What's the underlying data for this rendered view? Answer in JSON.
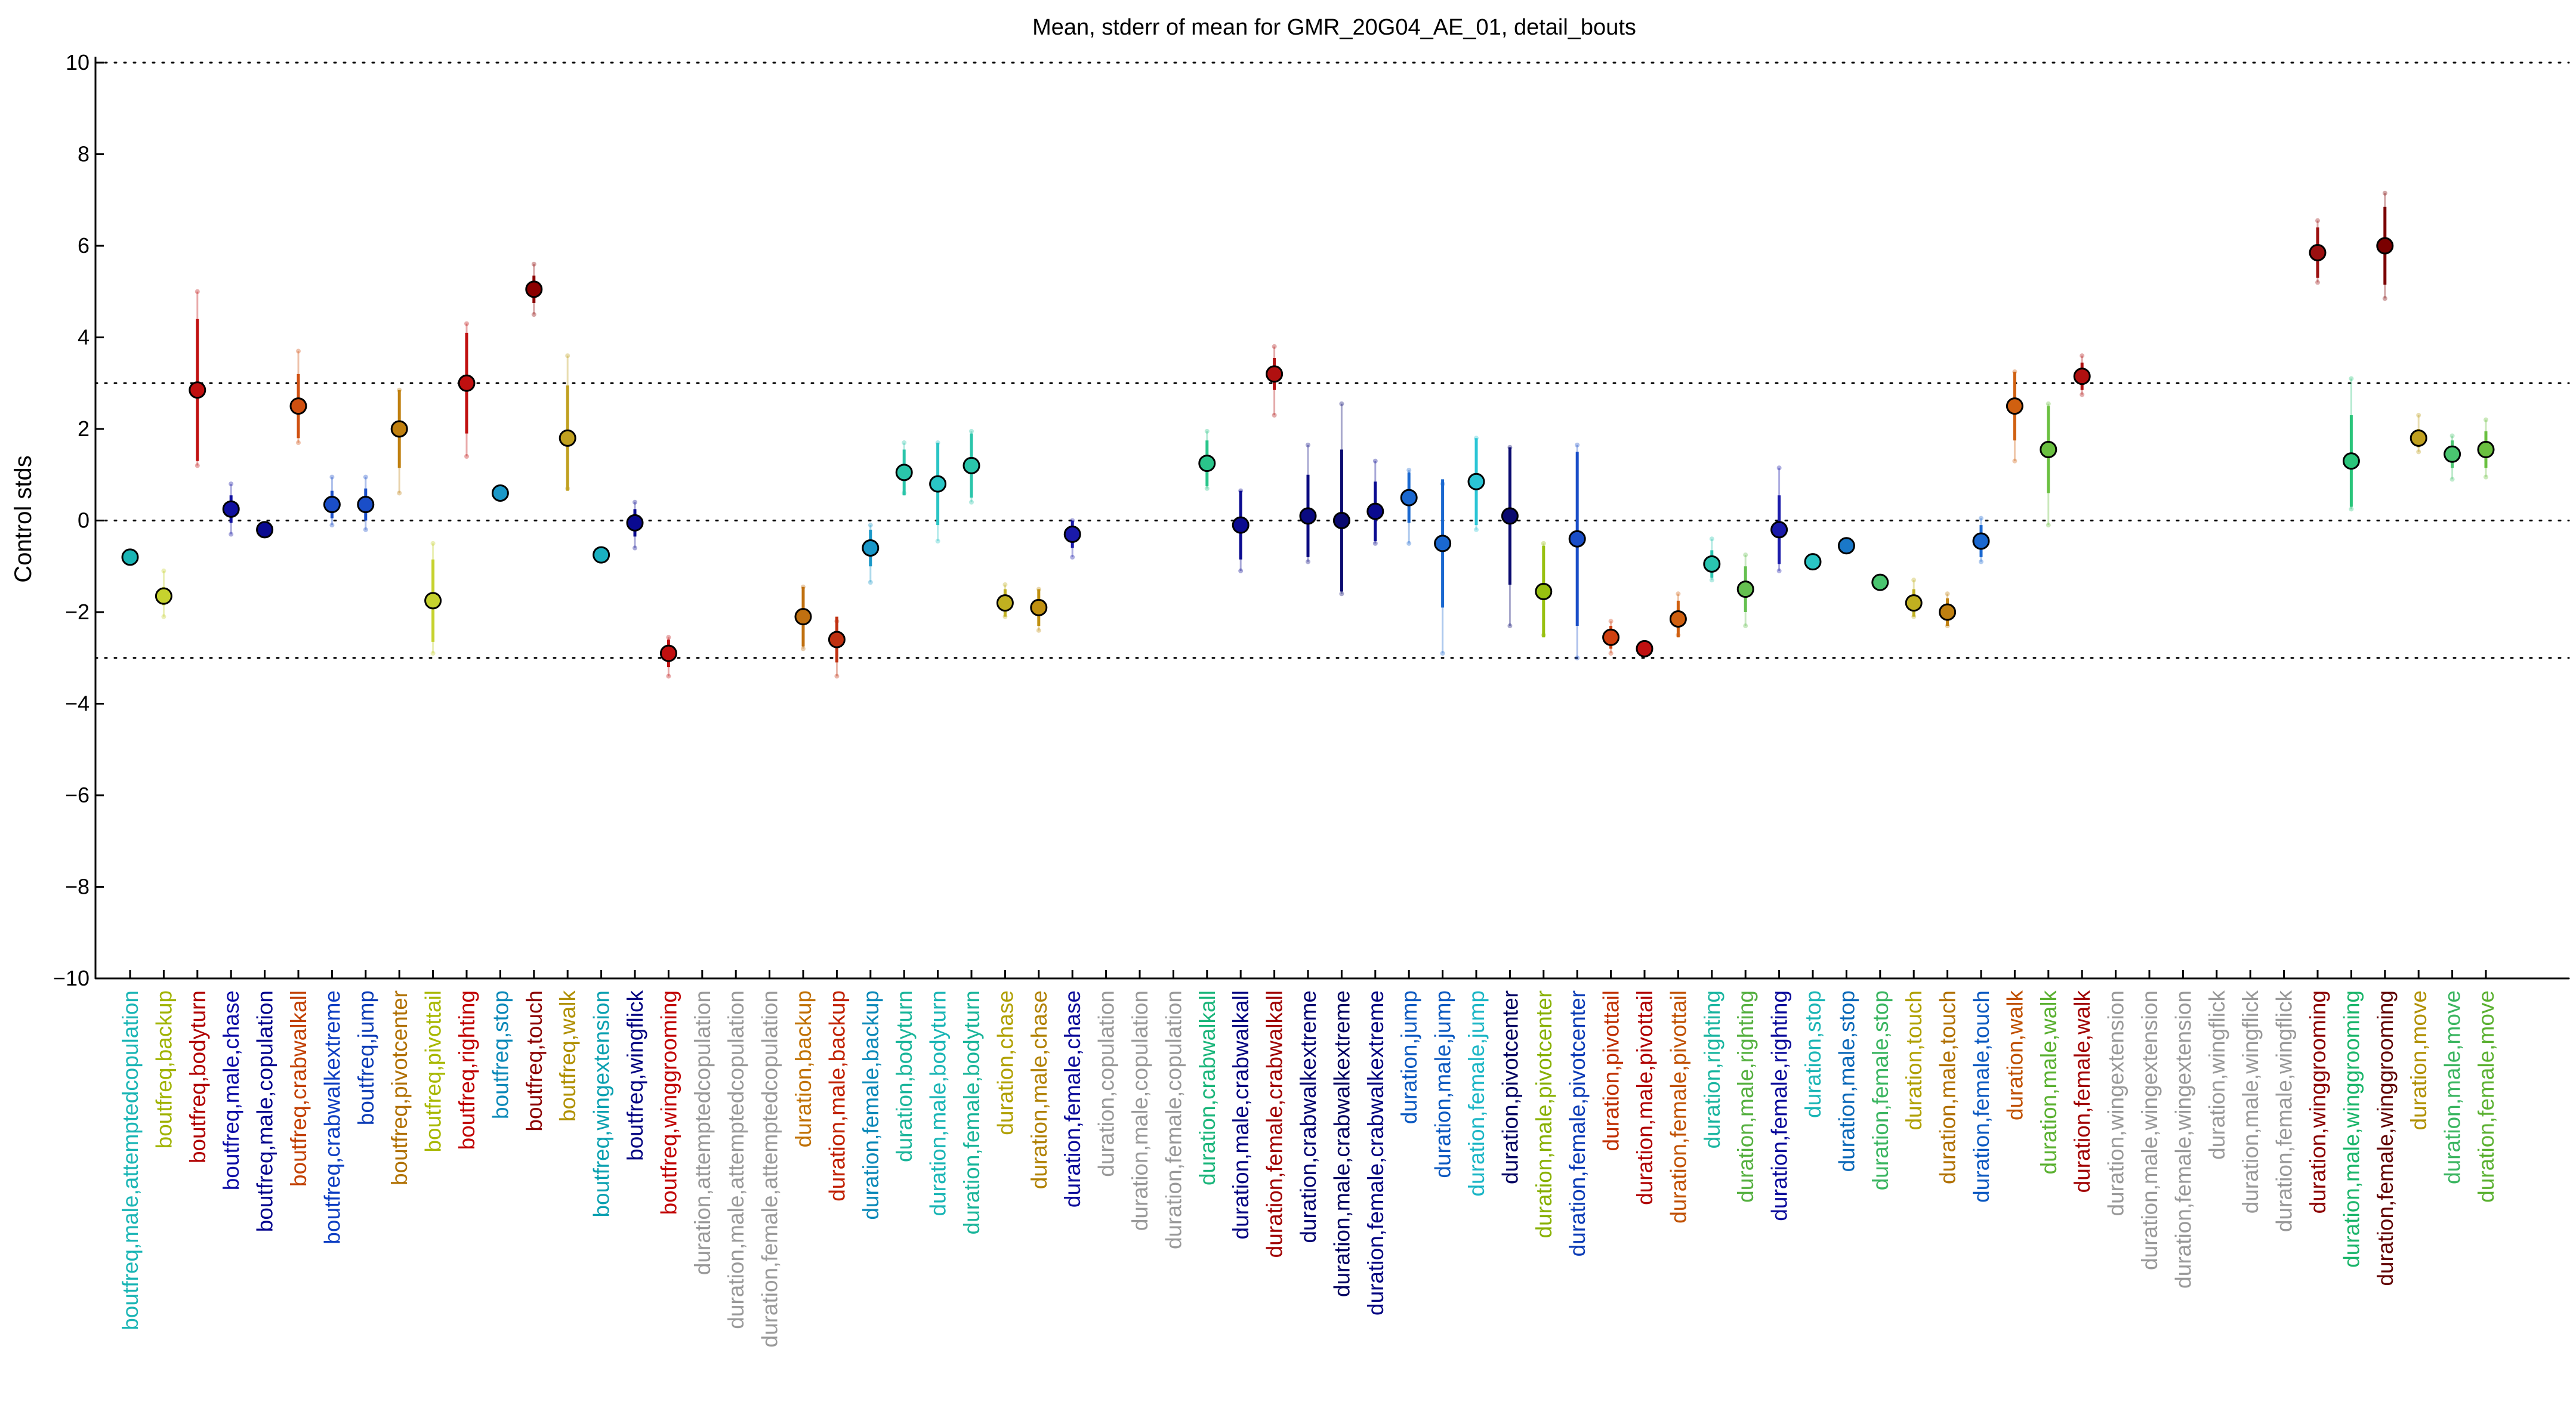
{
  "chart_data": {
    "type": "scatter",
    "title": "Mean, stderr of mean for GMR_20G04_AE_01, detail_bouts",
    "ylabel": "Control stds",
    "xlabel": "",
    "ylim": [
      -10,
      10
    ],
    "yticks": [
      -10,
      -8,
      -6,
      -4,
      -2,
      0,
      2,
      4,
      6,
      8,
      10
    ],
    "reference_lines": [
      -10,
      -3,
      0,
      3,
      10
    ],
    "grid": false,
    "categories": [
      "boutfreq,male,attemptedcopulation",
      "boutfreq,backup",
      "boutfreq,bodyturn",
      "boutfreq,male,chase",
      "boutfreq,male,copulation",
      "boutfreq,crabwalkall",
      "boutfreq,crabwalkextreme",
      "boutfreq,jump",
      "boutfreq,pivotcenter",
      "boutfreq,pivottail",
      "boutfreq,righting",
      "boutfreq,stop",
      "boutfreq,touch",
      "boutfreq,walk",
      "boutfreq,wingextension",
      "boutfreq,wingflick",
      "boutfreq,winggrooming",
      "duration,attemptedcopulation",
      "duration,male,attemptedcopulation",
      "duration,female,attemptedcopulation",
      "duration,backup",
      "duration,male,backup",
      "duration,female,backup",
      "duration,bodyturn",
      "duration,male,bodyturn",
      "duration,female,bodyturn",
      "duration,chase",
      "duration,male,chase",
      "duration,female,chase",
      "duration,copulation",
      "duration,male,copulation",
      "duration,female,copulation",
      "duration,crabwalkall",
      "duration,male,crabwalkall",
      "duration,female,crabwalkall",
      "duration,crabwalkextreme",
      "duration,male,crabwalkextreme",
      "duration,female,crabwalkextreme",
      "duration,jump",
      "duration,male,jump",
      "duration,female,jump",
      "duration,pivotcenter",
      "duration,male,pivotcenter",
      "duration,female,pivotcenter",
      "duration,pivottail",
      "duration,male,pivottail",
      "duration,female,pivottail",
      "duration,righting",
      "duration,male,righting",
      "duration,female,righting",
      "duration,stop",
      "duration,male,stop",
      "duration,female,stop",
      "duration,touch",
      "duration,male,touch",
      "duration,female,touch",
      "duration,walk",
      "duration,male,walk",
      "duration,female,walk",
      "duration,wingextension",
      "duration,male,wingextension",
      "duration,female,wingextension",
      "duration,wingflick",
      "duration,male,wingflick",
      "duration,female,wingflick",
      "duration,winggrooming",
      "duration,male,winggrooming",
      "duration,female,winggrooming",
      "duration,move",
      "duration,male,move",
      "duration,female,move"
    ],
    "label_colors": [
      "#1ab5b5",
      "#a0b300",
      "#b00000",
      "#0a0aa5",
      "#00008c",
      "#c24000",
      "#0d3ec2",
      "#0a3ab5",
      "#b07000",
      "#a8b800",
      "#c00000",
      "#0a88b8",
      "#8b0000",
      "#b09000",
      "#0aa0b0",
      "#000080",
      "#c00000",
      "#999999",
      "#999999",
      "#999999",
      "#c07000",
      "#c02000",
      "#0a88b8",
      "#1ab59a",
      "#1ab5b5",
      "#1ab59a",
      "#b0a000",
      "#b08000",
      "#0a0a9a",
      "#999999",
      "#999999",
      "#999999",
      "#1ab57a",
      "#000080",
      "#a00000",
      "#000070",
      "#000060",
      "#000080",
      "#0a58c0",
      "#0a58c0",
      "#1ab5c5",
      "#000060",
      "#88b000",
      "#0a3ab5",
      "#c03000",
      "#b00000",
      "#c05000",
      "#1ab5a0",
      "#55b040",
      "#0a0a9a",
      "#1ab5b5",
      "#0a68b8",
      "#3ab560",
      "#b0a000",
      "#b07000",
      "#0a58c0",
      "#c05000",
      "#5ab030",
      "#a00000",
      "#999999",
      "#999999",
      "#999999",
      "#999999",
      "#999999",
      "#999999",
      "#8b0000",
      "#1ab56a",
      "#600000",
      "#b09000",
      "#3ab560",
      "#5ab030"
    ],
    "series": [
      {
        "name": "",
        "points": [
          {
            "x": 0,
            "mean": -0.8,
            "sem": 0.05,
            "lo": -0.8,
            "hi": -0.8,
            "fill": "#1ab5b5"
          },
          {
            "x": 1,
            "mean": -1.65,
            "sem": 0.2,
            "lo": -2.1,
            "hi": -1.1,
            "fill": "#c6d22e"
          },
          {
            "x": 2,
            "mean": 2.85,
            "sem": 1.55,
            "lo": 1.2,
            "hi": 5.0,
            "fill": "#c01010"
          },
          {
            "x": 3,
            "mean": 0.25,
            "sem": 0.3,
            "lo": -0.3,
            "hi": 0.8,
            "fill": "#1010a0"
          },
          {
            "x": 4,
            "mean": -0.2,
            "sem": 0.05,
            "lo": -0.2,
            "hi": -0.2,
            "fill": "#0a0a90"
          },
          {
            "x": 5,
            "mean": 2.5,
            "sem": 0.7,
            "lo": 1.7,
            "hi": 3.7,
            "fill": "#d05010"
          },
          {
            "x": 6,
            "mean": 0.35,
            "sem": 0.3,
            "lo": -0.1,
            "hi": 0.95,
            "fill": "#1a4ec8"
          },
          {
            "x": 7,
            "mean": 0.35,
            "sem": 0.35,
            "lo": -0.2,
            "hi": 0.95,
            "fill": "#1a4ec8"
          },
          {
            "x": 8,
            "mean": 2.0,
            "sem": 0.85,
            "lo": 0.6,
            "hi": 2.85,
            "fill": "#c08010"
          },
          {
            "x": 9,
            "mean": -1.75,
            "sem": 0.9,
            "lo": -2.9,
            "hi": -0.5,
            "fill": "#c6d22e"
          },
          {
            "x": 10,
            "mean": 3.0,
            "sem": 1.1,
            "lo": 1.4,
            "hi": 4.3,
            "fill": "#c01010"
          },
          {
            "x": 11,
            "mean": 0.6,
            "sem": 0.05,
            "lo": 0.6,
            "hi": 0.6,
            "fill": "#1a98c8"
          },
          {
            "x": 12,
            "mean": 5.05,
            "sem": 0.3,
            "lo": 4.5,
            "hi": 5.6,
            "fill": "#8b0000"
          },
          {
            "x": 13,
            "mean": 1.8,
            "sem": 1.15,
            "lo": 0.7,
            "hi": 3.6,
            "fill": "#c0a020"
          },
          {
            "x": 14,
            "mean": -0.75,
            "sem": 0.05,
            "lo": -0.75,
            "hi": -0.75,
            "fill": "#1ab0c0"
          },
          {
            "x": 15,
            "mean": -0.05,
            "sem": 0.3,
            "lo": -0.6,
            "hi": 0.4,
            "fill": "#0a0a90"
          },
          {
            "x": 16,
            "mean": -2.9,
            "sem": 0.3,
            "lo": -3.4,
            "hi": -2.55,
            "fill": "#c01010"
          },
          {
            "x": 20,
            "mean": -2.1,
            "sem": 0.65,
            "lo": -2.8,
            "hi": -1.45,
            "fill": "#c07010"
          },
          {
            "x": 21,
            "mean": -2.6,
            "sem": 0.5,
            "lo": -3.4,
            "hi": -2.2,
            "fill": "#c03010"
          },
          {
            "x": 22,
            "mean": -0.6,
            "sem": 0.4,
            "lo": -1.35,
            "hi": -0.1,
            "fill": "#1a98c8"
          },
          {
            "x": 23,
            "mean": 1.05,
            "sem": 0.5,
            "lo": 0.6,
            "hi": 1.7,
            "fill": "#2ac5aa"
          },
          {
            "x": 24,
            "mean": 0.8,
            "sem": 0.9,
            "lo": -0.45,
            "hi": 1.7,
            "fill": "#2ac5c5"
          },
          {
            "x": 25,
            "mean": 1.2,
            "sem": 0.7,
            "lo": 0.4,
            "hi": 1.95,
            "fill": "#2ac5aa"
          },
          {
            "x": 26,
            "mean": -1.8,
            "sem": 0.3,
            "lo": -2.1,
            "hi": -1.4,
            "fill": "#c0b020"
          },
          {
            "x": 27,
            "mean": -1.9,
            "sem": 0.4,
            "lo": -2.4,
            "hi": -1.5,
            "fill": "#c09010"
          },
          {
            "x": 28,
            "mean": -0.3,
            "sem": 0.3,
            "lo": -0.8,
            "hi": 0.0,
            "fill": "#1a1aaa"
          },
          {
            "x": 32,
            "mean": 1.25,
            "sem": 0.5,
            "lo": 0.7,
            "hi": 1.95,
            "fill": "#2ac58a"
          },
          {
            "x": 33,
            "mean": -0.1,
            "sem": 0.75,
            "lo": -1.1,
            "hi": 0.65,
            "fill": "#0a0a90"
          },
          {
            "x": 34,
            "mean": 3.2,
            "sem": 0.35,
            "lo": 2.3,
            "hi": 3.8,
            "fill": "#b01010"
          },
          {
            "x": 35,
            "mean": 0.1,
            "sem": 0.9,
            "lo": -0.9,
            "hi": 1.65,
            "fill": "#0a0a80"
          },
          {
            "x": 36,
            "mean": 0.0,
            "sem": 1.55,
            "lo": -1.6,
            "hi": 2.55,
            "fill": "#0a0a70"
          },
          {
            "x": 37,
            "mean": 0.2,
            "sem": 0.65,
            "lo": -0.5,
            "hi": 1.3,
            "fill": "#0a0a90"
          },
          {
            "x": 38,
            "mean": 0.5,
            "sem": 0.55,
            "lo": -0.5,
            "hi": 1.1,
            "fill": "#1a68d0"
          },
          {
            "x": 39,
            "mean": -0.5,
            "sem": 1.4,
            "lo": -2.9,
            "hi": 0.8,
            "fill": "#1a68d0"
          },
          {
            "x": 40,
            "mean": 0.85,
            "sem": 0.95,
            "lo": -0.2,
            "hi": 1.8,
            "fill": "#2ac5d5"
          },
          {
            "x": 41,
            "mean": 0.1,
            "sem": 1.5,
            "lo": -2.3,
            "hi": 1.6,
            "fill": "#0a0a70"
          },
          {
            "x": 42,
            "mean": -1.55,
            "sem": 1.0,
            "lo": -2.5,
            "hi": -0.5,
            "fill": "#98c010"
          },
          {
            "x": 43,
            "mean": -0.4,
            "sem": 1.9,
            "lo": -3.0,
            "hi": 1.65,
            "fill": "#1a4ec8"
          },
          {
            "x": 44,
            "mean": -2.55,
            "sem": 0.25,
            "lo": -2.9,
            "hi": -2.2,
            "fill": "#d04010"
          },
          {
            "x": 45,
            "mean": -2.8,
            "sem": 0.05,
            "lo": -2.8,
            "hi": -2.8,
            "fill": "#c01010"
          },
          {
            "x": 46,
            "mean": -2.15,
            "sem": 0.4,
            "lo": -2.5,
            "hi": -1.6,
            "fill": "#d06010"
          },
          {
            "x": 47,
            "mean": -0.95,
            "sem": 0.3,
            "lo": -1.3,
            "hi": -0.4,
            "fill": "#2ac5b0"
          },
          {
            "x": 48,
            "mean": -1.5,
            "sem": 0.5,
            "lo": -2.3,
            "hi": -0.75,
            "fill": "#65c050"
          },
          {
            "x": 49,
            "mean": -0.2,
            "sem": 0.75,
            "lo": -1.1,
            "hi": 1.15,
            "fill": "#1a1aaa"
          },
          {
            "x": 50,
            "mean": -0.9,
            "sem": 0.05,
            "lo": -0.9,
            "hi": -0.9,
            "fill": "#2ac5c5"
          },
          {
            "x": 51,
            "mean": -0.55,
            "sem": 0.05,
            "lo": -0.55,
            "hi": -0.55,
            "fill": "#1a78c8"
          },
          {
            "x": 52,
            "mean": -1.35,
            "sem": 0.05,
            "lo": -1.35,
            "hi": -1.35,
            "fill": "#4ac570"
          },
          {
            "x": 53,
            "mean": -1.8,
            "sem": 0.3,
            "lo": -2.1,
            "hi": -1.3,
            "fill": "#c0b020"
          },
          {
            "x": 54,
            "mean": -2.0,
            "sem": 0.3,
            "lo": -2.3,
            "hi": -1.6,
            "fill": "#c08010"
          },
          {
            "x": 55,
            "mean": -0.45,
            "sem": 0.35,
            "lo": -0.9,
            "hi": 0.05,
            "fill": "#1a68d0"
          },
          {
            "x": 56,
            "mean": 2.5,
            "sem": 0.75,
            "lo": 1.3,
            "hi": 3.25,
            "fill": "#d06010"
          },
          {
            "x": 57,
            "mean": 1.55,
            "sem": 0.95,
            "lo": -0.1,
            "hi": 2.55,
            "fill": "#6ac040"
          },
          {
            "x": 58,
            "mean": 3.15,
            "sem": 0.3,
            "lo": 2.75,
            "hi": 3.6,
            "fill": "#b01010"
          },
          {
            "x": 65,
            "mean": 5.85,
            "sem": 0.55,
            "lo": 5.2,
            "hi": 6.55,
            "fill": "#9b1010"
          },
          {
            "x": 66,
            "mean": 1.3,
            "sem": 1.0,
            "lo": 0.25,
            "hi": 3.1,
            "fill": "#2ac57a"
          },
          {
            "x": 67,
            "mean": 6.0,
            "sem": 0.85,
            "lo": 4.85,
            "hi": 7.15,
            "fill": "#7a0000"
          },
          {
            "x": 68,
            "mean": 1.8,
            "sem": 0.2,
            "lo": 1.5,
            "hi": 2.3,
            "fill": "#c0a020"
          },
          {
            "x": 69,
            "mean": 1.45,
            "sem": 0.3,
            "lo": 0.9,
            "hi": 1.85,
            "fill": "#4ac570"
          },
          {
            "x": 70,
            "mean": 1.55,
            "sem": 0.4,
            "lo": 0.95,
            "hi": 2.2,
            "fill": "#6ac040"
          }
        ]
      }
    ]
  }
}
